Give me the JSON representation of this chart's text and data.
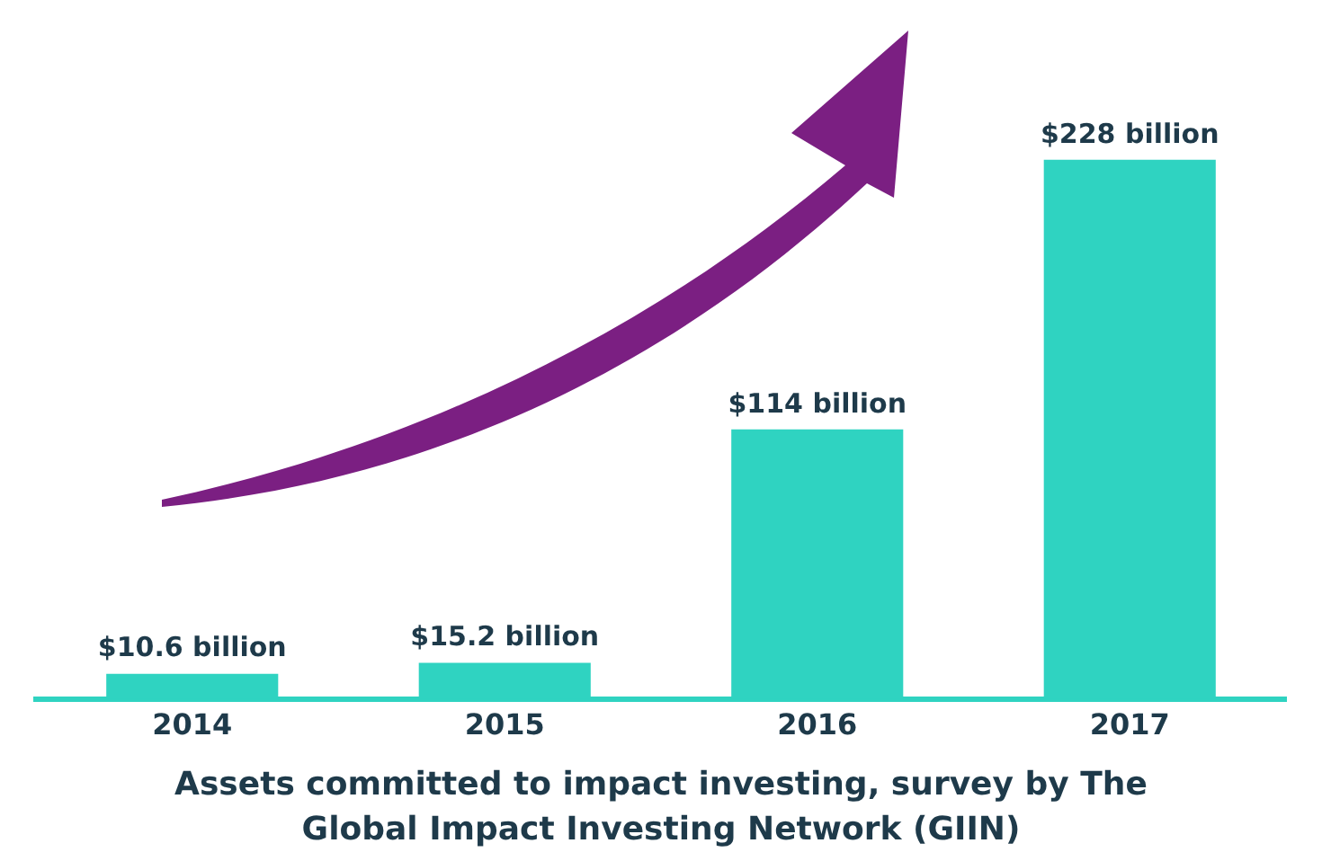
{
  "chart_data": {
    "type": "bar",
    "title": "Assets committed to impact investing, survey by The Global Impact Investing Network (GIIN)",
    "categories": [
      "2014",
      "2015",
      "2016",
      "2017"
    ],
    "values": [
      10.6,
      15.2,
      114,
      228
    ],
    "value_labels": [
      "$10.6 billion",
      "$15.2 billion",
      "$114 billion",
      "$228 billion"
    ],
    "color": "#2fd3c1",
    "grid": false,
    "legend": false
  }
}
